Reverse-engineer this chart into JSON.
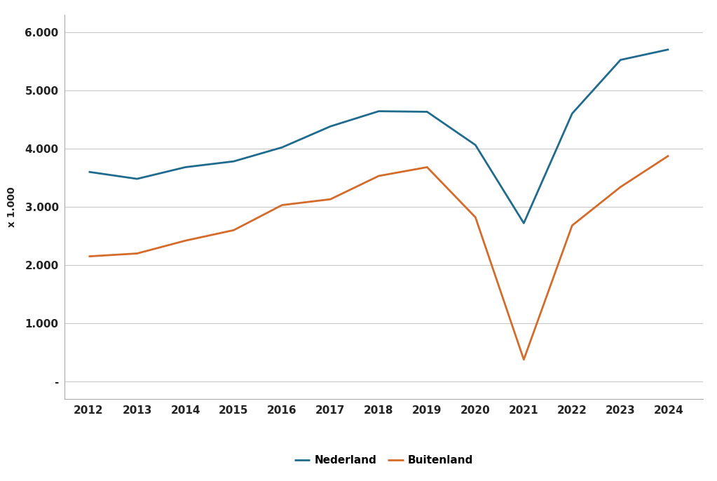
{
  "years": [
    2012,
    2013,
    2014,
    2015,
    2016,
    2017,
    2018,
    2019,
    2020,
    2021,
    2022,
    2023,
    2024
  ],
  "nederland": [
    3600,
    3480,
    3680,
    3780,
    4020,
    4380,
    4640,
    4630,
    4060,
    2720,
    4600,
    5520,
    5700
  ],
  "buitenland": [
    2150,
    2200,
    2420,
    2600,
    3030,
    3130,
    3530,
    3680,
    2820,
    380,
    2680,
    3340,
    3880
  ],
  "nederland_color": "#1F6B8E",
  "buitenland_color": "#D46B2A",
  "background_color": "#ffffff",
  "grid_color": "#c8c8c8",
  "ylabel": "x 1.000",
  "yticks": [
    0,
    1000,
    2000,
    3000,
    4000,
    5000,
    6000
  ],
  "ytick_labels": [
    "-",
    "1.000",
    "2.000",
    "3.000",
    "4.000",
    "5.000",
    "6.000"
  ],
  "legend_nederland": "Nederland",
  "legend_buitenland": "Buitenland",
  "line_width": 2.0
}
